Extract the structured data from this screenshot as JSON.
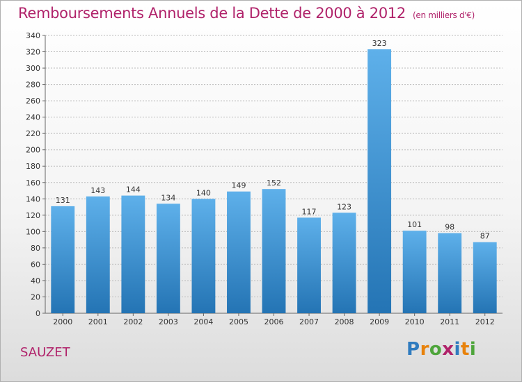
{
  "title": "Remboursements Annuels de la Dette de 2000 à 2012",
  "unit": "(en milliers d'€)",
  "town": "SAUZET",
  "logo": {
    "text": "Proxiti",
    "letter_colors": [
      "#2f7bbf",
      "#e8820c",
      "#4ea53b",
      "#b0226a",
      "#2f7bbf",
      "#e8820c",
      "#4ea53b"
    ]
  },
  "colors": {
    "title": "#b0226a",
    "bar_top": "#5eb0ea",
    "bar_bottom": "#2474b4",
    "grid": "#bbbbbb"
  },
  "chart_data": {
    "type": "bar",
    "categories": [
      "2000",
      "2001",
      "2002",
      "2003",
      "2004",
      "2005",
      "2006",
      "2007",
      "2008",
      "2009",
      "2010",
      "2011",
      "2012"
    ],
    "values": [
      131,
      143,
      144,
      134,
      140,
      149,
      152,
      117,
      123,
      323,
      101,
      98,
      87
    ],
    "ylim": [
      0,
      340
    ],
    "ytick_step": 20,
    "grid": true,
    "xlabel": "",
    "ylabel": ""
  }
}
